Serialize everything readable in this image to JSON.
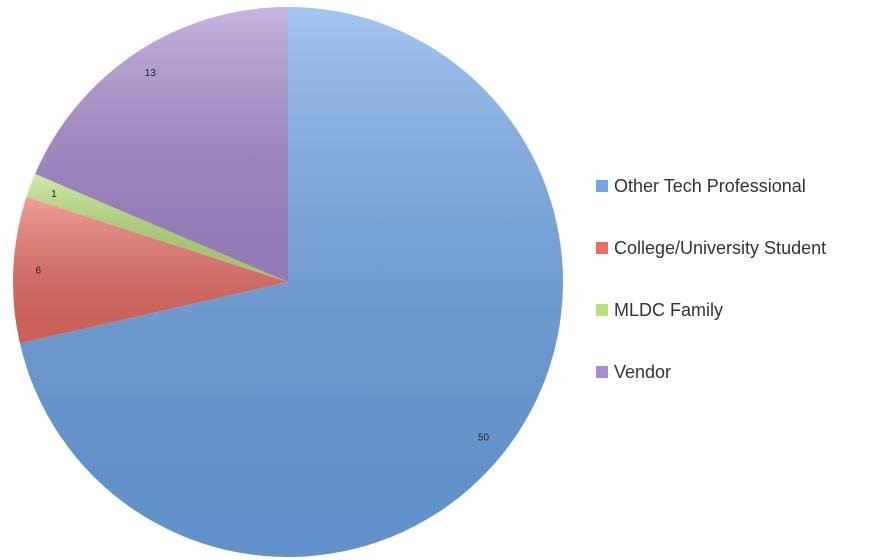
{
  "chart_data": {
    "type": "pie",
    "categories": [
      "Other Tech Professional",
      "College/University Student",
      "MLDC Family",
      "Vendor"
    ],
    "values": [
      50,
      6,
      1,
      13
    ],
    "colors": [
      "#6ea6e8",
      "#ea6d64",
      "#b9e27c",
      "#a98cd2"
    ],
    "legend": "right"
  }
}
